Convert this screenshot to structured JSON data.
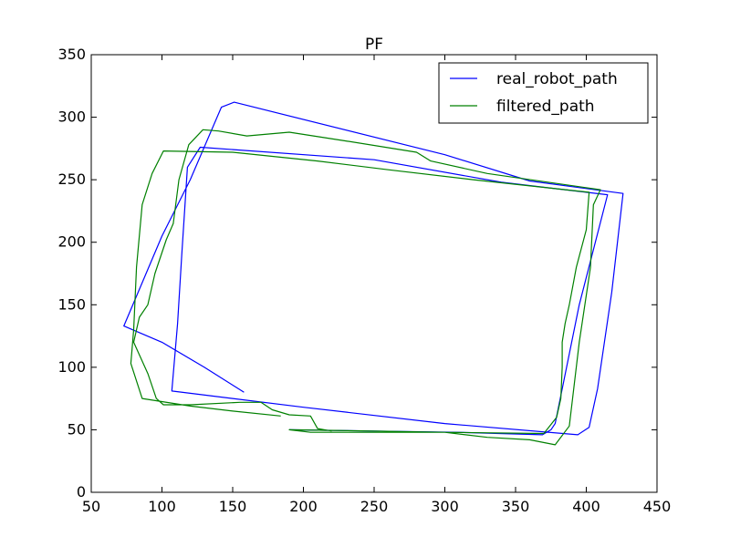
{
  "chart_data": {
    "type": "line",
    "title": "PF",
    "xlabel": "",
    "ylabel": "",
    "xlim": [
      50,
      450
    ],
    "ylim": [
      0,
      350
    ],
    "xticks": [
      50,
      100,
      150,
      200,
      250,
      300,
      350,
      400,
      450
    ],
    "yticks": [
      0,
      50,
      100,
      150,
      200,
      250,
      300,
      350
    ],
    "grid": false,
    "legend_position": "top-right",
    "series": [
      {
        "name": "real_robot_path",
        "color": "#0000ff",
        "points": [
          [
            158,
            80
          ],
          [
            130,
            100
          ],
          [
            100,
            120
          ],
          [
            73,
            133
          ],
          [
            100,
            205
          ],
          [
            120,
            250
          ],
          [
            142,
            308
          ],
          [
            151,
            312
          ],
          [
            300,
            270
          ],
          [
            360,
            249
          ],
          [
            426,
            239
          ],
          [
            418,
            160
          ],
          [
            408,
            83
          ],
          [
            402,
            52
          ],
          [
            394,
            46
          ],
          [
            300,
            55
          ],
          [
            200,
            68
          ],
          [
            107,
            81
          ],
          [
            111,
            135
          ],
          [
            114,
            190
          ],
          [
            118,
            260
          ],
          [
            127,
            276
          ],
          [
            250,
            266
          ],
          [
            340,
            248
          ],
          [
            415,
            238
          ],
          [
            395,
            150
          ],
          [
            378,
            55
          ],
          [
            375,
            50
          ],
          [
            369,
            46
          ],
          [
            310,
            48
          ],
          [
            250,
            49
          ],
          [
            190,
            50
          ]
        ]
      },
      {
        "name": "filtered_path",
        "color": "#008000",
        "points": [
          [
            184,
            61
          ],
          [
            150,
            65
          ],
          [
            120,
            69
          ],
          [
            86,
            75
          ],
          [
            78,
            103
          ],
          [
            80,
            130
          ],
          [
            82,
            180
          ],
          [
            86,
            230
          ],
          [
            93,
            255
          ],
          [
            101,
            273
          ],
          [
            150,
            272
          ],
          [
            210,
            265
          ],
          [
            260,
            258
          ],
          [
            320,
            250
          ],
          [
            402,
            240
          ],
          [
            400,
            210
          ],
          [
            393,
            180
          ],
          [
            388,
            150
          ],
          [
            385,
            135
          ],
          [
            383,
            120
          ],
          [
            383,
            100
          ],
          [
            382,
            75
          ],
          [
            379,
            60
          ],
          [
            370,
            47
          ],
          [
            300,
            48
          ],
          [
            250,
            49
          ],
          [
            190,
            50
          ],
          [
            205,
            48
          ],
          [
            250,
            48
          ],
          [
            300,
            48
          ],
          [
            330,
            44
          ],
          [
            360,
            42
          ],
          [
            378,
            38
          ],
          [
            388,
            53
          ],
          [
            395,
            120
          ],
          [
            403,
            180
          ],
          [
            405,
            230
          ],
          [
            410,
            242
          ],
          [
            330,
            255
          ],
          [
            290,
            265
          ],
          [
            280,
            272
          ],
          [
            230,
            281
          ],
          [
            190,
            288
          ],
          [
            160,
            285
          ],
          [
            140,
            289
          ],
          [
            129,
            290
          ],
          [
            119,
            278
          ],
          [
            112,
            250
          ],
          [
            108,
            215
          ],
          [
            103,
            202
          ],
          [
            95,
            175
          ],
          [
            90,
            150
          ],
          [
            84,
            140
          ],
          [
            80,
            120
          ],
          [
            90,
            95
          ],
          [
            96,
            75
          ],
          [
            101,
            70
          ],
          [
            120,
            70
          ],
          [
            155,
            72
          ],
          [
            170,
            72
          ],
          [
            178,
            66
          ],
          [
            190,
            62
          ],
          [
            205,
            61
          ],
          [
            210,
            51
          ],
          [
            220,
            49
          ]
        ]
      }
    ]
  }
}
